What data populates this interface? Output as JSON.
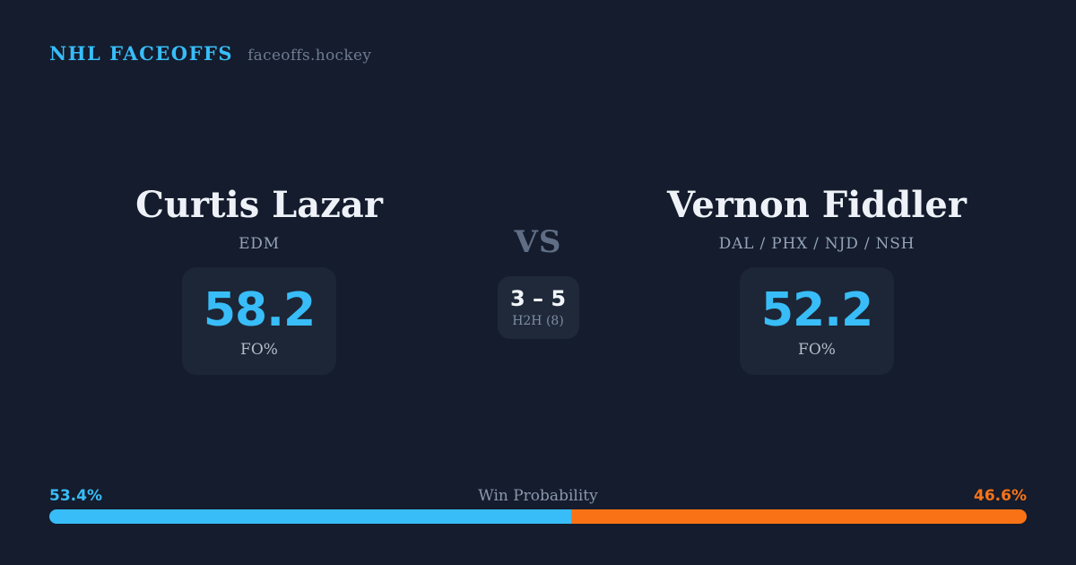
{
  "colors": {
    "bg": "#141c2d",
    "card": "#1d2636",
    "accent_blue": "#38bdf8",
    "accent_orange": "#f97316"
  },
  "brand": {
    "title": "NHL FACEOFFS",
    "domain": "faceoffs.hockey"
  },
  "players": {
    "left": {
      "name": "Curtis Lazar",
      "teams": "EDM",
      "stat_value": "58.2",
      "stat_label": "FO%"
    },
    "right": {
      "name": "Vernon Fiddler",
      "teams": "DAL / PHX / NJD / NSH",
      "stat_value": "52.2",
      "stat_label": "FO%"
    }
  },
  "versus": {
    "label": "VS",
    "h2h_score": "3 – 5",
    "h2h_label": "H2H (8)"
  },
  "win_probability": {
    "label": "Win Probability",
    "left_pct_text": "53.4%",
    "right_pct_text": "46.6%",
    "left_value": 53.4,
    "right_value": 46.6,
    "left_color": "#38bdf8",
    "right_color": "#f97316"
  },
  "chart_data": {
    "type": "bar",
    "title": "Win Probability",
    "categories": [
      "Curtis Lazar (EDM)",
      "Vernon Fiddler (DAL/PHX/NJD/NSH)"
    ],
    "series": [
      {
        "name": "Faceoff Win % (FO%)",
        "values": [
          58.2,
          52.2
        ]
      },
      {
        "name": "Win Probability %",
        "values": [
          53.4,
          46.6
        ]
      },
      {
        "name": "Head-to-head wins (8 faceoffs)",
        "values": [
          3,
          5
        ]
      }
    ],
    "legend_position": "none",
    "grid": false,
    "xlabel": "",
    "ylabel": "",
    "ylim": [
      0,
      100
    ]
  }
}
